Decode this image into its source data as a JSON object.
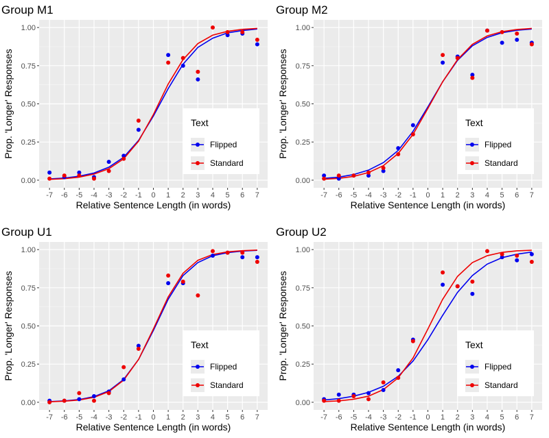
{
  "chart_data": [
    {
      "type": "scatter",
      "title": "Group M1",
      "xlabel": "Relative Sentence Length (in words)",
      "ylabel": "Prop. 'Longer' Responses",
      "x": [
        -7,
        -6,
        -5,
        -4,
        -3,
        -2,
        -1,
        0,
        1,
        2,
        3,
        4,
        5,
        6,
        7
      ],
      "xticks": [
        "-7",
        "-6",
        "-5",
        "-4",
        "-3",
        "-2",
        "-1",
        "0",
        "1",
        "2",
        "3",
        "4",
        "5",
        "6",
        "7"
      ],
      "yticks": [
        "0.00",
        "0.25",
        "0.50",
        "0.75",
        "1.00"
      ],
      "ylim": [
        0,
        1
      ],
      "legend": {
        "title": "Text",
        "entries": [
          "Flipped",
          "Standard"
        ]
      },
      "series": [
        {
          "name": "Flipped",
          "color": "#0000ee",
          "points": [
            [
              -7,
              0.05
            ],
            [
              -6,
              0.02
            ],
            [
              -5,
              0.05
            ],
            [
              -4,
              0.02
            ],
            [
              -3,
              0.12
            ],
            [
              -2,
              0.16
            ],
            [
              -1,
              0.33
            ],
            [
              1,
              0.82
            ],
            [
              2,
              0.75
            ],
            [
              3,
              0.66
            ],
            [
              5,
              0.95
            ],
            [
              6,
              0.96
            ],
            [
              7,
              0.89
            ]
          ],
          "fit": [
            0.008,
            0.014,
            0.026,
            0.047,
            0.085,
            0.15,
            0.26,
            0.42,
            0.6,
            0.76,
            0.87,
            0.93,
            0.965,
            0.98,
            0.99
          ]
        },
        {
          "name": "Standard",
          "color": "#ee0000",
          "points": [
            [
              -7,
              0.01
            ],
            [
              -6,
              0.03
            ],
            [
              -5,
              0.03
            ],
            [
              -4,
              0.01
            ],
            [
              -3,
              0.06
            ],
            [
              -2,
              0.14
            ],
            [
              -1,
              0.39
            ],
            [
              1,
              0.77
            ],
            [
              2,
              0.8
            ],
            [
              3,
              0.71
            ],
            [
              4,
              1.0
            ],
            [
              5,
              0.97
            ],
            [
              6,
              0.97
            ],
            [
              7,
              0.92
            ]
          ],
          "fit": [
            0.005,
            0.01,
            0.02,
            0.04,
            0.075,
            0.14,
            0.255,
            0.43,
            0.63,
            0.79,
            0.895,
            0.95,
            0.975,
            0.988,
            0.994
          ]
        }
      ]
    },
    {
      "type": "scatter",
      "title": "Group M2",
      "xlabel": "Relative Sentence Length (in words)",
      "ylabel": "Prop. 'Longer' Responses",
      "x": [
        -7,
        -6,
        -5,
        -4,
        -3,
        -2,
        -1,
        0,
        1,
        2,
        3,
        4,
        5,
        6,
        7
      ],
      "xticks": [
        "-7",
        "-6",
        "-5",
        "-4",
        "-3",
        "-2",
        "-1",
        "0",
        "1",
        "2",
        "3",
        "4",
        "5",
        "6",
        "7"
      ],
      "yticks": [
        "0.00",
        "0.25",
        "0.50",
        "0.75",
        "1.00"
      ],
      "ylim": [
        0,
        1
      ],
      "legend": {
        "title": "Text",
        "entries": [
          "Flipped",
          "Standard"
        ]
      },
      "series": [
        {
          "name": "Flipped",
          "color": "#0000ee",
          "points": [
            [
              -7,
              0.03
            ],
            [
              -6,
              0.01
            ],
            [
              -5,
              0.03
            ],
            [
              -4,
              0.03
            ],
            [
              -3,
              0.06
            ],
            [
              -2,
              0.21
            ],
            [
              -1,
              0.36
            ],
            [
              1,
              0.77
            ],
            [
              2,
              0.81
            ],
            [
              3,
              0.69
            ],
            [
              4,
              0.98
            ],
            [
              5,
              0.9
            ],
            [
              6,
              0.92
            ],
            [
              7,
              0.9
            ]
          ],
          "fit": [
            0.012,
            0.02,
            0.037,
            0.066,
            0.115,
            0.195,
            0.32,
            0.48,
            0.645,
            0.785,
            0.88,
            0.935,
            0.966,
            0.982,
            0.99
          ]
        },
        {
          "name": "Standard",
          "color": "#ee0000",
          "points": [
            [
              -7,
              0.01
            ],
            [
              -6,
              0.03
            ],
            [
              -5,
              0.03
            ],
            [
              -4,
              0.05
            ],
            [
              -3,
              0.08
            ],
            [
              -2,
              0.17
            ],
            [
              -1,
              0.3
            ],
            [
              1,
              0.82
            ],
            [
              2,
              0.8
            ],
            [
              3,
              0.67
            ],
            [
              4,
              0.98
            ],
            [
              5,
              0.97
            ],
            [
              6,
              0.96
            ],
            [
              7,
              0.89
            ]
          ],
          "fit": [
            0.006,
            0.012,
            0.025,
            0.05,
            0.095,
            0.175,
            0.3,
            0.47,
            0.645,
            0.79,
            0.89,
            0.945,
            0.973,
            0.987,
            0.994
          ]
        }
      ]
    },
    {
      "type": "scatter",
      "title": "Group U1",
      "xlabel": "Relative Sentence Length (in words)",
      "ylabel": "Prop. 'Longer' Responses",
      "x": [
        -7,
        -6,
        -5,
        -4,
        -3,
        -2,
        -1,
        0,
        1,
        2,
        3,
        4,
        5,
        6,
        7
      ],
      "xticks": [
        "-7",
        "-6",
        "-5",
        "-4",
        "-3",
        "-2",
        "-1",
        "0",
        "1",
        "2",
        "3",
        "4",
        "5",
        "6",
        "7"
      ],
      "yticks": [
        "0.00",
        "0.25",
        "0.50",
        "0.75",
        "1.00"
      ],
      "ylim": [
        0,
        1
      ],
      "legend": {
        "title": "Text",
        "entries": [
          "Flipped",
          "Standard"
        ]
      },
      "series": [
        {
          "name": "Flipped",
          "color": "#0000ee",
          "points": [
            [
              -7,
              0.01
            ],
            [
              -6,
              0.01
            ],
            [
              -5,
              0.02
            ],
            [
              -4,
              0.04
            ],
            [
              -3,
              0.07
            ],
            [
              -2,
              0.15
            ],
            [
              -1,
              0.37
            ],
            [
              1,
              0.78
            ],
            [
              2,
              0.78
            ],
            [
              4,
              0.96
            ],
            [
              5,
              0.98
            ],
            [
              6,
              0.95
            ],
            [
              7,
              0.95
            ]
          ],
          "fit": [
            0.004,
            0.009,
            0.018,
            0.037,
            0.075,
            0.15,
            0.28,
            0.47,
            0.675,
            0.83,
            0.915,
            0.96,
            0.98,
            0.99,
            0.995
          ]
        },
        {
          "name": "Standard",
          "color": "#ee0000",
          "points": [
            [
              -7,
              0.0
            ],
            [
              -6,
              0.01
            ],
            [
              -5,
              0.06
            ],
            [
              -4,
              0.01
            ],
            [
              -3,
              0.06
            ],
            [
              -2,
              0.23
            ],
            [
              -1,
              0.35
            ],
            [
              1,
              0.83
            ],
            [
              2,
              0.79
            ],
            [
              3,
              0.7
            ],
            [
              4,
              0.99
            ],
            [
              5,
              0.98
            ],
            [
              6,
              0.98
            ],
            [
              7,
              0.92
            ]
          ],
          "fit": [
            0.003,
            0.007,
            0.015,
            0.032,
            0.07,
            0.145,
            0.28,
            0.48,
            0.69,
            0.845,
            0.93,
            0.968,
            0.985,
            0.993,
            0.997
          ]
        }
      ]
    },
    {
      "type": "scatter",
      "title": "Group U2",
      "xlabel": "Relative Sentence Length (in words)",
      "ylabel": "Prop. 'Longer' Responses",
      "x": [
        -7,
        -6,
        -5,
        -4,
        -3,
        -2,
        -1,
        0,
        1,
        2,
        3,
        4,
        5,
        6,
        7
      ],
      "xticks": [
        "-7",
        "-6",
        "-5",
        "-4",
        "-3",
        "-2",
        "-1",
        "0",
        "1",
        "2",
        "3",
        "4",
        "5",
        "6",
        "7"
      ],
      "yticks": [
        "0.00",
        "0.25",
        "0.50",
        "0.75",
        "1.00"
      ],
      "ylim": [
        0,
        1
      ],
      "legend": {
        "title": "Text",
        "entries": [
          "Flipped",
          "Standard"
        ]
      },
      "series": [
        {
          "name": "Flipped",
          "color": "#0000ee",
          "points": [
            [
              -7,
              0.02
            ],
            [
              -6,
              0.05
            ],
            [
              -5,
              0.05
            ],
            [
              -4,
              0.06
            ],
            [
              -3,
              0.08
            ],
            [
              -2,
              0.21
            ],
            [
              -1,
              0.41
            ],
            [
              1,
              0.77
            ],
            [
              2,
              0.76
            ],
            [
              3,
              0.71
            ],
            [
              5,
              0.95
            ],
            [
              6,
              0.93
            ],
            [
              7,
              0.97
            ]
          ],
          "fit": [
            0.015,
            0.024,
            0.04,
            0.065,
            0.105,
            0.17,
            0.27,
            0.41,
            0.57,
            0.72,
            0.83,
            0.905,
            0.947,
            0.97,
            0.984
          ]
        },
        {
          "name": "Standard",
          "color": "#ee0000",
          "points": [
            [
              -7,
              0.01
            ],
            [
              -6,
              0.01
            ],
            [
              -5,
              0.04
            ],
            [
              -4,
              0.02
            ],
            [
              -3,
              0.13
            ],
            [
              -2,
              0.16
            ],
            [
              -1,
              0.4
            ],
            [
              1,
              0.85
            ],
            [
              2,
              0.76
            ],
            [
              3,
              0.79
            ],
            [
              4,
              0.99
            ],
            [
              5,
              0.97
            ],
            [
              6,
              0.96
            ],
            [
              7,
              0.92
            ]
          ],
          "fit": [
            0.004,
            0.009,
            0.02,
            0.04,
            0.083,
            0.16,
            0.29,
            0.48,
            0.675,
            0.825,
            0.915,
            0.96,
            0.982,
            0.992,
            0.996
          ]
        }
      ]
    }
  ]
}
